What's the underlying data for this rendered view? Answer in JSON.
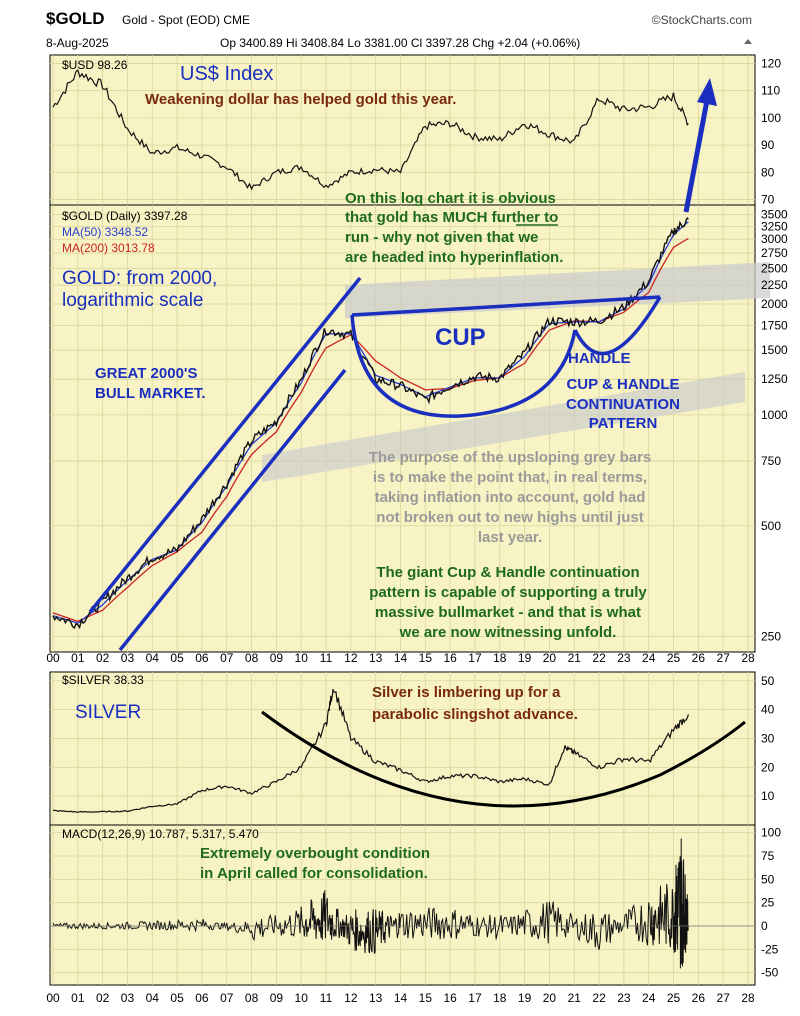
{
  "header": {
    "symbol": "$GOLD",
    "description": "Gold - Spot (EOD) CME",
    "date": "8-Aug-2025",
    "quote": "Op 3400.89 Hi 3408.84 Lo 3381.00 Cl 3397.28 Chg +2.04 (+0.06%)",
    "brand": "©StockCharts.com"
  },
  "colors": {
    "panel_bg": "#f7f3c4",
    "grid": "#d9d59e",
    "annotation_blue": "#1a2fbf",
    "annotation_brown": "#7a2a0c",
    "annotation_green": "#1e6b1e",
    "annotation_grey": "#9a9a9a",
    "ma50": "#2a3bd0",
    "ma200": "#cc2222",
    "price": "#111111"
  },
  "icons": {
    "arrow_up": "arrow-up-icon"
  },
  "chart_data": [
    {
      "type": "line",
      "panel": "usd",
      "legend": "$USD 98.26",
      "x": [
        2000,
        2001,
        2002,
        2003,
        2004,
        2005,
        2006,
        2007,
        2008,
        2009,
        2010,
        2011,
        2012,
        2013,
        2014,
        2015,
        2016,
        2017,
        2018,
        2019,
        2020,
        2021,
        2022,
        2023,
        2024,
        2025,
        2025.6
      ],
      "values": [
        104,
        117,
        112,
        96,
        87,
        89,
        86,
        82,
        74,
        80,
        82,
        75,
        80,
        81,
        80,
        97,
        98,
        93,
        92,
        98,
        94,
        91,
        107,
        103,
        104,
        108,
        98
      ],
      "y_ticks": [
        70,
        80,
        90,
        100,
        110,
        120
      ],
      "ylim": [
        68,
        122
      ]
    },
    {
      "type": "line",
      "panel": "gold",
      "scale": "log",
      "legend": [
        "$GOLD (Daily) 3397.28",
        "MA(50) 3348.52",
        "MA(200) 3013.78"
      ],
      "series": [
        {
          "name": "$GOLD (Daily) 3397.28",
          "values": [
            285,
            270,
            310,
            360,
            410,
            430,
            520,
            650,
            850,
            960,
            1240,
            1700,
            1650,
            1250,
            1200,
            1100,
            1200,
            1270,
            1260,
            1470,
            1800,
            1790,
            1800,
            1960,
            2300,
            3150,
            3397
          ]
        },
        {
          "name": "MA(50) 3348.52",
          "values": [
            285,
            272,
            305,
            355,
            405,
            430,
            510,
            640,
            830,
            950,
            1220,
            1660,
            1660,
            1280,
            1210,
            1120,
            1190,
            1260,
            1260,
            1440,
            1770,
            1790,
            1790,
            1940,
            2260,
            3080,
            3348
          ]
        },
        {
          "name": "MA(200) 3013.78",
          "values": [
            290,
            275,
            295,
            340,
            390,
            425,
            480,
            600,
            780,
            900,
            1150,
            1520,
            1650,
            1400,
            1260,
            1170,
            1180,
            1240,
            1260,
            1380,
            1700,
            1800,
            1790,
            1900,
            2150,
            2850,
            3014
          ]
        }
      ],
      "x": [
        2000,
        2001,
        2002,
        2003,
        2004,
        2005,
        2006,
        2007,
        2008,
        2009,
        2010,
        2011,
        2012,
        2013,
        2014,
        2015,
        2016,
        2017,
        2018,
        2019,
        2020,
        2021,
        2022,
        2023,
        2024,
        2025,
        2025.6
      ],
      "y_ticks": [
        250,
        500,
        750,
        1000,
        1250,
        1500,
        1750,
        2000,
        2250,
        2500,
        2750,
        3000,
        3250,
        3500
      ],
      "ylim": [
        230,
        3600
      ]
    },
    {
      "type": "line",
      "panel": "silver",
      "legend": "$SILVER 38.33",
      "x": [
        2000,
        2001,
        2002,
        2003,
        2004,
        2005,
        2006,
        2007,
        2008,
        2009,
        2010,
        2011,
        2011.3,
        2012,
        2013,
        2014,
        2015,
        2016,
        2017,
        2018,
        2019,
        2020,
        2020.6,
        2021,
        2022,
        2023,
        2024,
        2025,
        2025.6
      ],
      "values": [
        5,
        4.5,
        4.6,
        4.8,
        6.5,
        7.3,
        12,
        13.5,
        11,
        15,
        20,
        35,
        48,
        30,
        22,
        19,
        15,
        17,
        17,
        15,
        16,
        14,
        27,
        25,
        20,
        23,
        22,
        33,
        38.33
      ],
      "y_ticks": [
        10,
        20,
        30,
        40,
        50
      ],
      "ylim": [
        0,
        52
      ]
    },
    {
      "type": "line",
      "panel": "macd",
      "legend": "MACD(12,26,9) 10.787, 5.317, 5.470",
      "x": [
        2000,
        2002,
        2004,
        2006,
        2008,
        2010,
        2011,
        2012,
        2013,
        2014,
        2016,
        2018,
        2020,
        2022,
        2024,
        2025,
        2025.3,
        2025.6
      ],
      "values": [
        0,
        0,
        2,
        5,
        -8,
        10,
        28,
        -15,
        -20,
        8,
        10,
        -5,
        18,
        -18,
        25,
        40,
        95,
        10
      ],
      "y_ticks": [
        -50,
        -25,
        0,
        25,
        50,
        75,
        100
      ],
      "ylim": [
        -60,
        105
      ]
    }
  ],
  "x_axis": {
    "years": [
      "00",
      "01",
      "02",
      "03",
      "04",
      "05",
      "06",
      "07",
      "08",
      "09",
      "10",
      "11",
      "12",
      "13",
      "14",
      "15",
      "16",
      "17",
      "18",
      "19",
      "20",
      "21",
      "22",
      "23",
      "24",
      "25",
      "26",
      "27",
      "28"
    ]
  },
  "annotations": {
    "usd_title": "US$ Index",
    "usd_note": "Weakening dollar has helped gold this year.",
    "log_note": [
      "On this log chart it is obvious",
      "that gold has MUCH further to",
      "run - why not given that we",
      "are headed into hyperinflation."
    ],
    "gold_title": [
      "GOLD: from 2000,",
      "logarithmic scale"
    ],
    "bull_market": [
      "GREAT 2000'S",
      "BULL MARKET."
    ],
    "cup": "CUP",
    "handle": "HANDLE",
    "pattern": [
      "CUP & HANDLE",
      "CONTINUATION",
      "PATTERN"
    ],
    "grey_note": [
      "The purpose of the upsloping grey bars",
      "is to make the point that, in real terms,",
      "taking inflation into account, gold had",
      "not broken out to new highs until just",
      "last year."
    ],
    "green_note": [
      "The giant Cup & Handle continuation",
      "pattern is capable of supporting a truly",
      "massive bullmarket - and that is what",
      "we are now witnessing unfold."
    ],
    "silver_title": "SILVER",
    "silver_note": [
      "Silver is limbering up for a",
      "parabolic slingshot advance."
    ],
    "macd_note": [
      "Extremely overbought condition",
      "in April called for consolidation."
    ]
  }
}
